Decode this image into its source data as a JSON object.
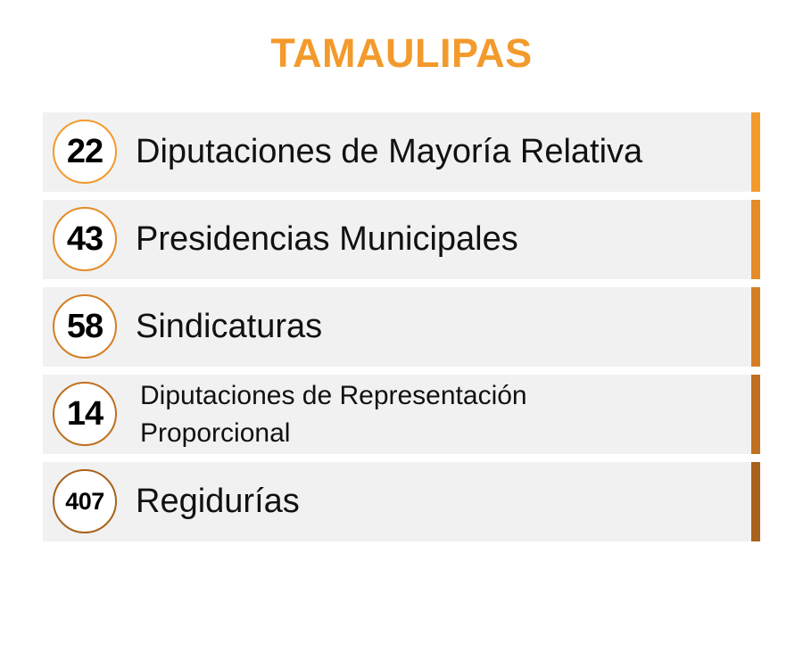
{
  "title": "TAMAULIPAS",
  "colors": {
    "title": "#f39a2c",
    "row_background": "#f1f1f1"
  },
  "items": [
    {
      "number": "22",
      "label": "Diputaciones de Mayoría Relativa",
      "accent": "#f39a2c"
    },
    {
      "number": "43",
      "label": "Presidencias Municipales",
      "accent": "#e58b27"
    },
    {
      "number": "58",
      "label": "Sindicaturas",
      "accent": "#d47e24"
    },
    {
      "number": "14",
      "label": "Diputaciones de Representación Proporcional",
      "accent": "#bf7020"
    },
    {
      "number": "407",
      "label": "Regidurías",
      "accent": "#a8621b"
    }
  ]
}
